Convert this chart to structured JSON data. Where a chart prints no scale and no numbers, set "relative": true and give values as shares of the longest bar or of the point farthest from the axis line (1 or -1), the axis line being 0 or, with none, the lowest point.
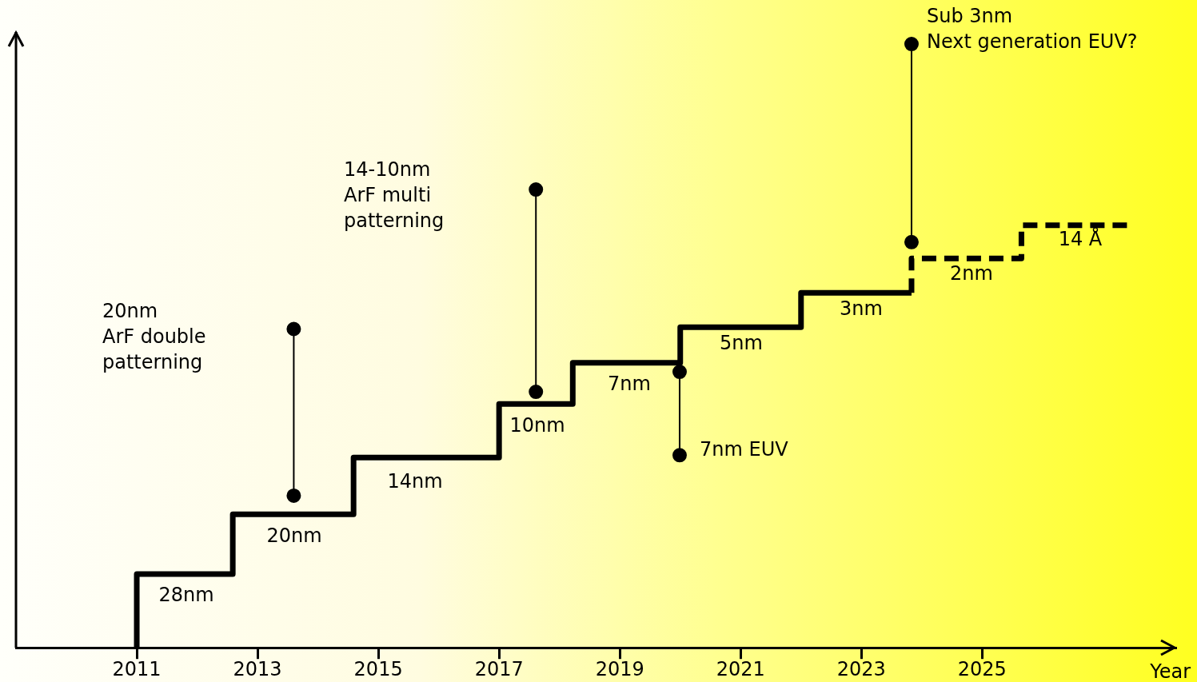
{
  "chart_data": {
    "type": "step",
    "xlabel": "Year",
    "relative": true,
    "xlim": [
      2009,
      2028.2
    ],
    "xticks": [
      2011,
      2013,
      2015,
      2017,
      2019,
      2021,
      2023,
      2025
    ],
    "grid": false,
    "legend": false,
    "series": [
      {
        "color": "#000000",
        "marker": "none",
        "line_style": "solid",
        "x": [
          2011,
          2011,
          2012.59,
          2014.59,
          2017,
          2018.22,
          2020,
          2022,
          2023.83
        ],
        "values": [
          0,
          0.122,
          0.221,
          0.315,
          0.404,
          0.472,
          0.531,
          0.588,
          0.588
        ]
      },
      {
        "color": "#000000",
        "marker": "none",
        "line_style": "dashed",
        "x": [
          2023.83,
          2023.83,
          2025.65,
          2027.46
        ],
        "values": [
          0.588,
          0.645,
          0.7,
          0.7
        ]
      },
      {
        "type": "line",
        "color": "#000000",
        "marker": "circle",
        "line_style": "solid",
        "x": [
          2013.6,
          2013.6
        ],
        "values": [
          0.528,
          0.252
        ]
      },
      {
        "type": "line",
        "color": "#000000",
        "marker": "circle",
        "line_style": "solid",
        "x": [
          2017.61,
          2017.61
        ],
        "values": [
          0.759,
          0.424
        ]
      },
      {
        "type": "line",
        "color": "#000000",
        "marker": "circle",
        "line_style": "solid",
        "x": [
          2019.99,
          2019.99
        ],
        "values": [
          0.457,
          0.319
        ]
      },
      {
        "type": "line",
        "color": "#000000",
        "marker": "circle",
        "line_style": "solid",
        "x": [
          2023.83,
          2023.83
        ],
        "values": [
          1.0,
          0.672
        ]
      }
    ],
    "annotations": [
      "28nm",
      "20nm",
      "14nm",
      "10nm",
      "7nm",
      "5nm",
      "3nm",
      "2nm",
      "14 Å",
      "7nm EUV",
      "20nm\nArF double\npatterning",
      "14-10nm\nArF multi\npatterning",
      "Sub 3nm\nNext generation EUV?"
    ]
  }
}
